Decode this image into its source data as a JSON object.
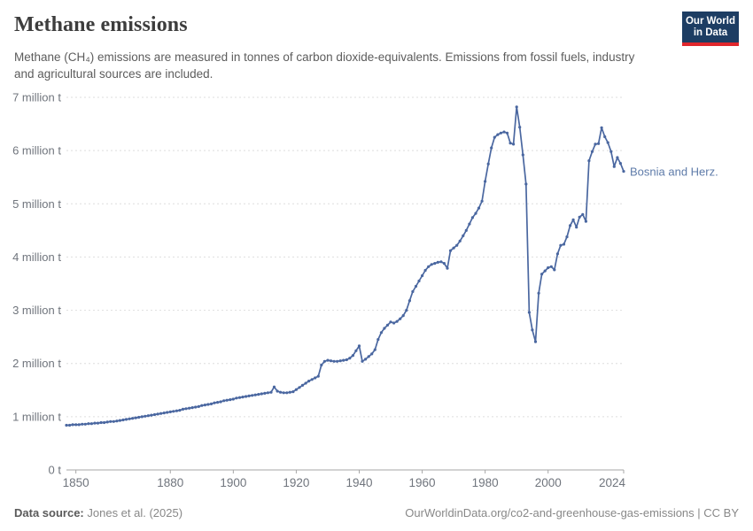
{
  "header": {
    "title": "Methane emissions",
    "subtitle": "Methane (CH₄) emissions are measured in tonnes of carbon dioxide-equivalents. Emissions from fossil fuels, industry and agricultural sources are included.",
    "logo": {
      "line1": "Our World",
      "line2": "in Data",
      "bg_color": "#1d3d63",
      "stripe_color": "#e0262c"
    }
  },
  "footer": {
    "source_label": "Data source:",
    "source_value": "Jones et al. (2025)",
    "link_text": "OurWorldinData.org/co2-and-greenhouse-gas-emissions | CC BY"
  },
  "chart_data": {
    "type": "line",
    "title": "Methane emissions",
    "xlabel": "",
    "ylabel": "",
    "unit": "t",
    "grid": true,
    "legend_position": "end-of-line-label",
    "x_range": [
      1847,
      2024
    ],
    "y_range": [
      0,
      7
    ],
    "x_ticks": [
      1850,
      1880,
      1900,
      1920,
      1940,
      1960,
      1980,
      2000,
      2024
    ],
    "y_ticks": [
      {
        "value": 0,
        "label": "0 t"
      },
      {
        "value": 1,
        "label": "1 million t"
      },
      {
        "value": 2,
        "label": "2 million t"
      },
      {
        "value": 3,
        "label": "3 million t"
      },
      {
        "value": 4,
        "label": "4 million t"
      },
      {
        "value": 5,
        "label": "5 million t"
      },
      {
        "value": 6,
        "label": "6 million t"
      },
      {
        "value": 7,
        "label": "7 million t"
      }
    ],
    "colors": {
      "line": "#4a67a0",
      "entity_label": "#5e7ba9",
      "grid": "#dedede",
      "axis": "#a7a7a7",
      "tick_text": "#70757d"
    },
    "series": [
      {
        "name": "Bosnia and Herz.",
        "points": [
          [
            1847,
            0.84
          ],
          [
            1848,
            0.84
          ],
          [
            1849,
            0.85
          ],
          [
            1850,
            0.85
          ],
          [
            1851,
            0.85
          ],
          [
            1852,
            0.86
          ],
          [
            1853,
            0.86
          ],
          [
            1854,
            0.87
          ],
          [
            1855,
            0.87
          ],
          [
            1856,
            0.88
          ],
          [
            1857,
            0.88
          ],
          [
            1858,
            0.89
          ],
          [
            1859,
            0.89
          ],
          [
            1860,
            0.9
          ],
          [
            1861,
            0.91
          ],
          [
            1862,
            0.91
          ],
          [
            1863,
            0.92
          ],
          [
            1864,
            0.93
          ],
          [
            1865,
            0.94
          ],
          [
            1866,
            0.95
          ],
          [
            1867,
            0.96
          ],
          [
            1868,
            0.97
          ],
          [
            1869,
            0.98
          ],
          [
            1870,
            0.99
          ],
          [
            1871,
            1.0
          ],
          [
            1872,
            1.01
          ],
          [
            1873,
            1.02
          ],
          [
            1874,
            1.03
          ],
          [
            1875,
            1.04
          ],
          [
            1876,
            1.05
          ],
          [
            1877,
            1.06
          ],
          [
            1878,
            1.07
          ],
          [
            1879,
            1.08
          ],
          [
            1880,
            1.09
          ],
          [
            1881,
            1.1
          ],
          [
            1882,
            1.11
          ],
          [
            1883,
            1.12
          ],
          [
            1884,
            1.14
          ],
          [
            1885,
            1.15
          ],
          [
            1886,
            1.16
          ],
          [
            1887,
            1.17
          ],
          [
            1888,
            1.18
          ],
          [
            1889,
            1.19
          ],
          [
            1890,
            1.21
          ],
          [
            1891,
            1.22
          ],
          [
            1892,
            1.23
          ],
          [
            1893,
            1.24
          ],
          [
            1894,
            1.26
          ],
          [
            1895,
            1.27
          ],
          [
            1896,
            1.28
          ],
          [
            1897,
            1.3
          ],
          [
            1898,
            1.31
          ],
          [
            1899,
            1.32
          ],
          [
            1900,
            1.33
          ],
          [
            1901,
            1.35
          ],
          [
            1902,
            1.36
          ],
          [
            1903,
            1.37
          ],
          [
            1904,
            1.38
          ],
          [
            1905,
            1.39
          ],
          [
            1906,
            1.4
          ],
          [
            1907,
            1.41
          ],
          [
            1908,
            1.42
          ],
          [
            1909,
            1.43
          ],
          [
            1910,
            1.44
          ],
          [
            1911,
            1.45
          ],
          [
            1912,
            1.46
          ],
          [
            1913,
            1.56
          ],
          [
            1914,
            1.48
          ],
          [
            1915,
            1.46
          ],
          [
            1916,
            1.45
          ],
          [
            1917,
            1.45
          ],
          [
            1918,
            1.46
          ],
          [
            1919,
            1.47
          ],
          [
            1920,
            1.51
          ],
          [
            1921,
            1.55
          ],
          [
            1922,
            1.59
          ],
          [
            1923,
            1.63
          ],
          [
            1924,
            1.67
          ],
          [
            1925,
            1.7
          ],
          [
            1926,
            1.73
          ],
          [
            1927,
            1.76
          ],
          [
            1928,
            1.97
          ],
          [
            1929,
            2.04
          ],
          [
            1930,
            2.06
          ],
          [
            1931,
            2.05
          ],
          [
            1932,
            2.04
          ],
          [
            1933,
            2.04
          ],
          [
            1934,
            2.05
          ],
          [
            1935,
            2.06
          ],
          [
            1936,
            2.07
          ],
          [
            1937,
            2.1
          ],
          [
            1938,
            2.15
          ],
          [
            1939,
            2.24
          ],
          [
            1940,
            2.33
          ],
          [
            1941,
            2.04
          ],
          [
            1942,
            2.08
          ],
          [
            1943,
            2.13
          ],
          [
            1944,
            2.18
          ],
          [
            1945,
            2.26
          ],
          [
            1946,
            2.45
          ],
          [
            1947,
            2.58
          ],
          [
            1948,
            2.66
          ],
          [
            1949,
            2.72
          ],
          [
            1950,
            2.78
          ],
          [
            1951,
            2.76
          ],
          [
            1952,
            2.79
          ],
          [
            1953,
            2.84
          ],
          [
            1954,
            2.9
          ],
          [
            1955,
            3.0
          ],
          [
            1956,
            3.18
          ],
          [
            1957,
            3.35
          ],
          [
            1958,
            3.45
          ],
          [
            1959,
            3.55
          ],
          [
            1960,
            3.65
          ],
          [
            1961,
            3.75
          ],
          [
            1962,
            3.82
          ],
          [
            1963,
            3.86
          ],
          [
            1964,
            3.88
          ],
          [
            1965,
            3.9
          ],
          [
            1966,
            3.91
          ],
          [
            1967,
            3.88
          ],
          [
            1968,
            3.79
          ],
          [
            1969,
            4.12
          ],
          [
            1970,
            4.17
          ],
          [
            1971,
            4.22
          ],
          [
            1972,
            4.3
          ],
          [
            1973,
            4.4
          ],
          [
            1974,
            4.5
          ],
          [
            1975,
            4.62
          ],
          [
            1976,
            4.74
          ],
          [
            1977,
            4.82
          ],
          [
            1978,
            4.92
          ],
          [
            1979,
            5.05
          ],
          [
            1980,
            5.42
          ],
          [
            1981,
            5.75
          ],
          [
            1982,
            6.05
          ],
          [
            1983,
            6.25
          ],
          [
            1984,
            6.3
          ],
          [
            1985,
            6.33
          ],
          [
            1986,
            6.35
          ],
          [
            1987,
            6.33
          ],
          [
            1988,
            6.14
          ],
          [
            1989,
            6.12
          ],
          [
            1990,
            6.82
          ],
          [
            1991,
            6.44
          ],
          [
            1992,
            5.92
          ],
          [
            1993,
            5.37
          ],
          [
            1994,
            2.96
          ],
          [
            1995,
            2.63
          ],
          [
            1996,
            2.41
          ],
          [
            1997,
            3.32
          ],
          [
            1998,
            3.68
          ],
          [
            1999,
            3.74
          ],
          [
            2000,
            3.8
          ],
          [
            2001,
            3.82
          ],
          [
            2002,
            3.76
          ],
          [
            2003,
            4.06
          ],
          [
            2004,
            4.22
          ],
          [
            2005,
            4.24
          ],
          [
            2006,
            4.38
          ],
          [
            2007,
            4.59
          ],
          [
            2008,
            4.7
          ],
          [
            2009,
            4.56
          ],
          [
            2010,
            4.75
          ],
          [
            2011,
            4.8
          ],
          [
            2012,
            4.67
          ],
          [
            2013,
            5.81
          ],
          [
            2014,
            5.98
          ],
          [
            2015,
            6.12
          ],
          [
            2016,
            6.13
          ],
          [
            2017,
            6.43
          ],
          [
            2018,
            6.26
          ],
          [
            2019,
            6.15
          ],
          [
            2020,
            5.98
          ],
          [
            2021,
            5.7
          ],
          [
            2022,
            5.87
          ],
          [
            2023,
            5.76
          ],
          [
            2024,
            5.61
          ]
        ]
      }
    ]
  }
}
